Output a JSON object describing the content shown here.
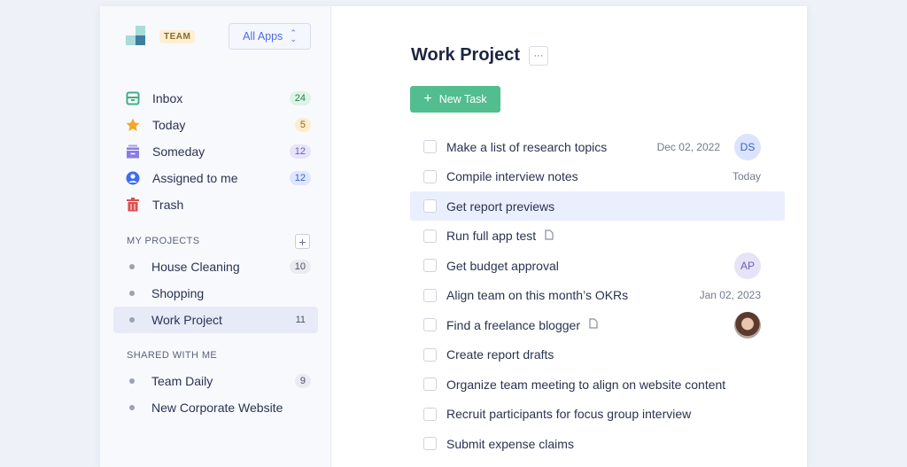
{
  "sidebar": {
    "badge": "TEAM",
    "apps_label": "All Apps",
    "nav": [
      {
        "label": "Inbox",
        "count": "24",
        "icon": "inbox-icon",
        "color": "#3fb07f"
      },
      {
        "label": "Today",
        "count": "5",
        "icon": "star-icon",
        "color": "#f6a623"
      },
      {
        "label": "Someday",
        "count": "12",
        "icon": "archive-icon",
        "color": "#8b7be0"
      },
      {
        "label": "Assigned to me",
        "count": "12",
        "icon": "user-icon",
        "color": "#3d6cf0"
      },
      {
        "label": "Trash",
        "icon": "trash-icon",
        "color": "#dc4d4d"
      }
    ],
    "projects_header": "MY PROJECTS",
    "projects": [
      {
        "label": "House Cleaning",
        "count": "10"
      },
      {
        "label": "Shopping"
      },
      {
        "label": "Work Project",
        "count": "11",
        "selected": true
      }
    ],
    "shared_header": "SHARED WITH ME",
    "shared": [
      {
        "label": "Team Daily",
        "count": "9"
      },
      {
        "label": "New Corporate Website"
      }
    ]
  },
  "main": {
    "title": "Work Project",
    "more": "···",
    "new_task": "New Task",
    "tasks": [
      {
        "text": "Make a list of research topics",
        "date": "Dec 02, 2022",
        "assignee": "DS"
      },
      {
        "text": "Compile interview notes",
        "date": "Today"
      },
      {
        "text": "Get report previews",
        "highlighted": true
      },
      {
        "text": "Run full app test",
        "attachment": true
      },
      {
        "text": "Get budget approval",
        "assignee": "AP"
      },
      {
        "text": "Align team on this month’s OKRs",
        "date": "Jan 02, 2023"
      },
      {
        "text": "Find a freelance blogger",
        "attachment": true,
        "assignee_photo": true
      },
      {
        "text": "Create report drafts"
      },
      {
        "text": "Organize team meeting to align on website content"
      },
      {
        "text": "Recruit participants for focus group interview"
      },
      {
        "text": "Submit expense claims"
      }
    ]
  }
}
